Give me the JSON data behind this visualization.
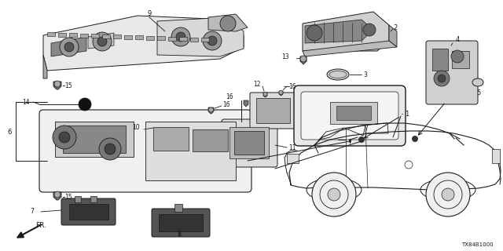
{
  "background_color": "#ffffff",
  "line_color": "#1a1a1a",
  "diagram_ref": "TX84B1000",
  "gray_fill": "#555555",
  "light_gray": "#aaaaaa",
  "mid_gray": "#777777"
}
